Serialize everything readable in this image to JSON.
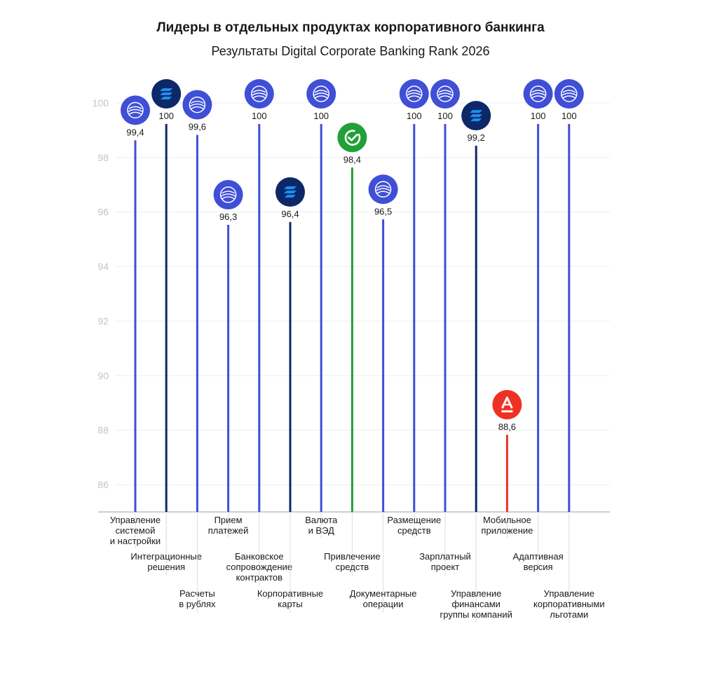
{
  "title": "Лидеры в отдельных продуктах корпоративного банкинга",
  "subtitle": "Результаты Digital Corporate Banking Rank 2026",
  "chart_data": {
    "type": "bar",
    "title": "Лидеры в отдельных продуктах корпоративного банкинга",
    "subtitle": "Результаты Digital Corporate Banking Rank 2026",
    "ylim": [
      85,
      100
    ],
    "yticks": [
      "86",
      "88",
      "90",
      "92",
      "94",
      "96",
      "98",
      "100"
    ],
    "grid": true,
    "categories": [
      [
        "Управление",
        "системой",
        "и настройки"
      ],
      [
        "Интеграционные",
        "решения"
      ],
      [
        "Расчеты",
        "в рублях"
      ],
      [
        "Прием",
        "платежей"
      ],
      [
        "Банковское",
        "сопровождение",
        "контрактов"
      ],
      [
        "Корпоративные",
        "карты"
      ],
      [
        "Валюта",
        "и ВЭД"
      ],
      [
        "Привлечение",
        "средств"
      ],
      [
        "Документарные",
        "операции"
      ],
      [
        "Размещение",
        "средств"
      ],
      [
        "Зарплатный",
        "проект"
      ],
      [
        "Управление",
        "финансами",
        "группы компаний"
      ],
      [
        "Мобильное",
        "приложение"
      ],
      [
        "Адаптивная",
        "версия"
      ],
      [
        "Управление",
        "корпоративными",
        "льготами"
      ]
    ],
    "values": [
      99.4,
      100,
      99.6,
      96.3,
      100,
      96.4,
      100,
      98.4,
      96.5,
      100,
      100,
      99.2,
      88.6,
      100,
      100
    ],
    "value_labels": [
      "99,4",
      "100",
      "99,6",
      "96,3",
      "100",
      "96,4",
      "100",
      "98,4",
      "96,5",
      "100",
      "100",
      "99,2",
      "88,6",
      "100",
      "100"
    ],
    "bank_icons": [
      "gazprom-icon",
      "vtb-icon",
      "gazprom-icon",
      "gazprom-icon",
      "gazprom-icon",
      "vtb-icon",
      "gazprom-icon",
      "sber-icon",
      "gazprom-icon",
      "gazprom-icon",
      "gazprom-icon",
      "vtb-icon",
      "alfa-icon",
      "gazprom-icon",
      "gazprom-icon"
    ],
    "colors": {
      "gazprom": "#3f4fd6",
      "vtb": "#0c2868",
      "sber": "#21a038",
      "alfa": "#ef3124",
      "grid": "#eeeeee",
      "axis": "#bdbdbd"
    }
  }
}
